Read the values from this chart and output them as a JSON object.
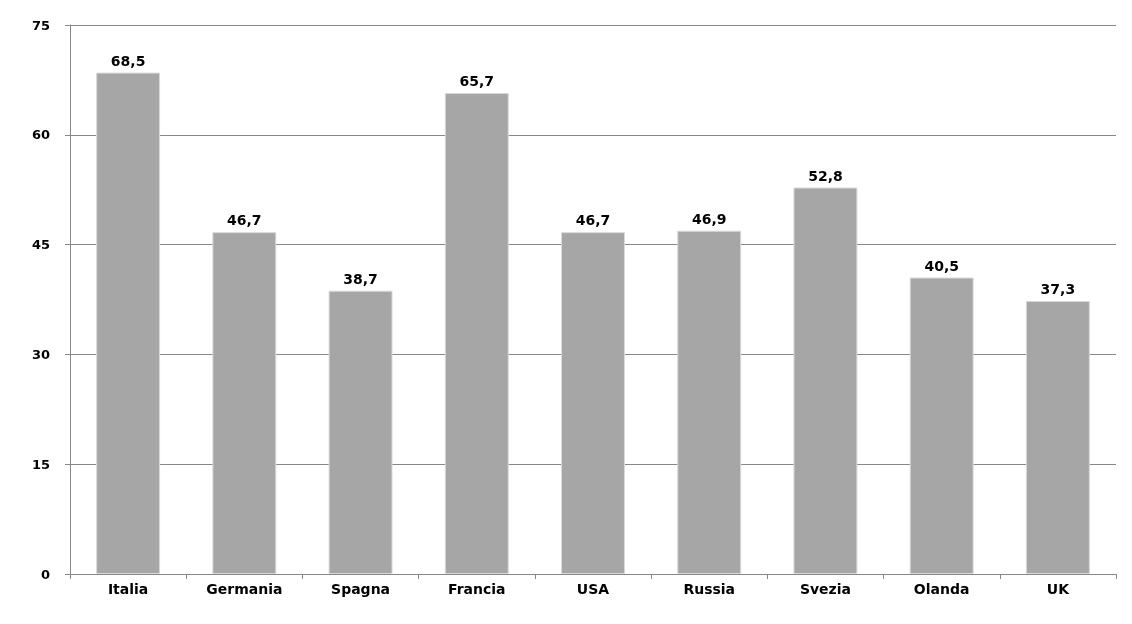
{
  "chart_data": {
    "type": "bar",
    "categories": [
      "Italia",
      "Germania",
      "Spagna",
      "Francia",
      "USA",
      "Russia",
      "Svezia",
      "Olanda",
      "UK"
    ],
    "values": [
      68.5,
      46.7,
      38.7,
      65.7,
      46.7,
      46.9,
      52.8,
      40.5,
      37.3
    ],
    "value_labels": [
      "68,5",
      "46,7",
      "38,7",
      "65,7",
      "46,7",
      "46,9",
      "52,8",
      "40,5",
      "37,3"
    ],
    "color": "#a6a6a6",
    "ylim": [
      0,
      75
    ],
    "yticks": [
      0,
      15,
      30,
      45,
      60,
      75
    ],
    "grid": "y"
  }
}
